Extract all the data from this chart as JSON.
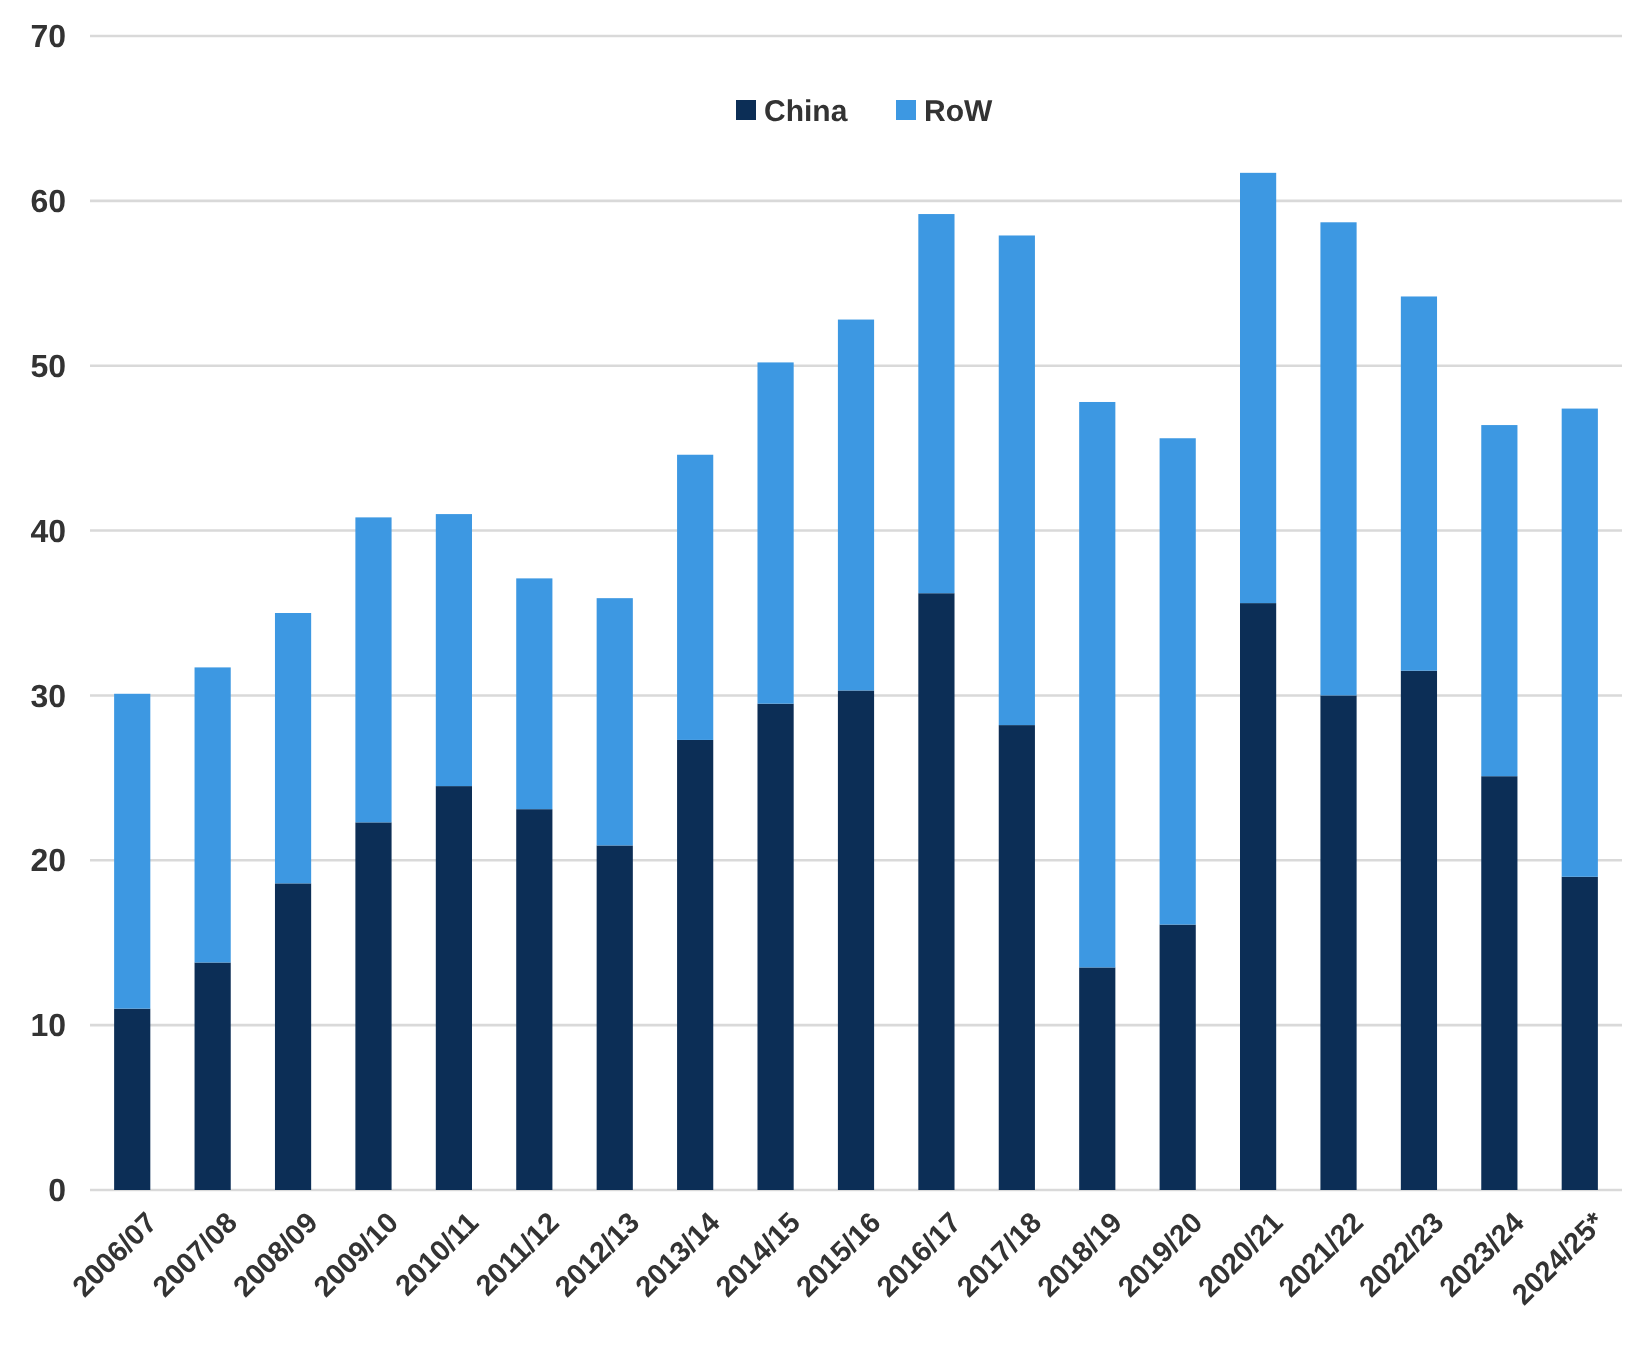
{
  "chart_data": {
    "type": "bar",
    "stacked": true,
    "categories": [
      "2006/07",
      "2007/08",
      "2008/09",
      "2009/10",
      "2010/11",
      "2011/12",
      "2012/13",
      "2013/14",
      "2014/15",
      "2015/16",
      "2016/17",
      "2017/18",
      "2018/19",
      "2019/20",
      "2020/21",
      "2021/22",
      "2022/23",
      "2023/24",
      "2024/25*"
    ],
    "series": [
      {
        "name": "China",
        "color": "#0c2e56",
        "values": [
          11,
          13.8,
          18.6,
          22.3,
          24.5,
          23.1,
          20.9,
          27.3,
          29.5,
          30.3,
          36.2,
          28.2,
          13.5,
          16.1,
          35.6,
          30,
          31.5,
          25.1,
          19
        ]
      },
      {
        "name": "RoW",
        "color": "#3d98e2",
        "values": [
          19.1,
          17.9,
          16.4,
          18.5,
          16.5,
          14,
          15,
          17.3,
          20.7,
          22.5,
          23,
          29.7,
          34.3,
          29.5,
          26.1,
          28.7,
          22.7,
          21.3,
          28.4
        ]
      }
    ],
    "ylim": [
      0,
      70
    ],
    "yticks": [
      0,
      10,
      20,
      30,
      40,
      50,
      60,
      70
    ],
    "grid": "y",
    "legend": "top"
  }
}
